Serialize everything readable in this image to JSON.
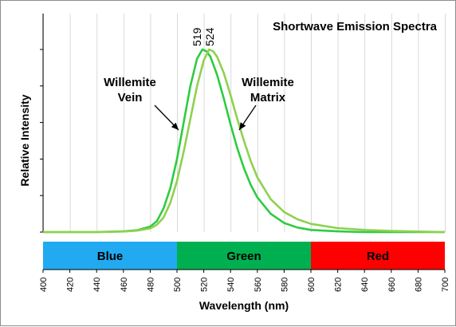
{
  "chart_data": {
    "type": "line",
    "title": "Shortwave Emission Spectra",
    "xlabel": "Wavelength (nm)",
    "ylabel": "Relative Intensity",
    "xlim": [
      400,
      700
    ],
    "ylim": [
      0,
      1.0
    ],
    "x_ticks": [
      "400",
      "420",
      "440",
      "460",
      "480",
      "500",
      "520",
      "540",
      "560",
      "580",
      "600",
      "620",
      "640",
      "660",
      "680",
      "700"
    ],
    "grid": "vertical",
    "peaks": [
      "519",
      "524"
    ],
    "series": [
      {
        "name": "Willemite Vein",
        "color": "#2ecc40",
        "x": [
          400,
          440,
          460,
          470,
          480,
          485,
          490,
          495,
          500,
          505,
          510,
          515,
          519,
          522,
          525,
          530,
          535,
          540,
          545,
          550,
          555,
          560,
          570,
          580,
          590,
          600,
          620,
          640,
          660,
          680,
          700
        ],
        "y": [
          0.0,
          0.0,
          0.004,
          0.01,
          0.03,
          0.06,
          0.13,
          0.24,
          0.4,
          0.6,
          0.8,
          0.95,
          1.0,
          0.99,
          0.96,
          0.86,
          0.73,
          0.59,
          0.46,
          0.35,
          0.26,
          0.19,
          0.1,
          0.05,
          0.025,
          0.012,
          0.004,
          0.0,
          0.0,
          0.0,
          0.0
        ]
      },
      {
        "name": "Willemite Matrix",
        "color": "#8fd14f",
        "x": [
          400,
          440,
          460,
          470,
          480,
          485,
          490,
          495,
          500,
          505,
          510,
          515,
          520,
          524,
          527,
          530,
          535,
          540,
          545,
          550,
          555,
          560,
          570,
          580,
          590,
          600,
          620,
          640,
          660,
          680,
          700
        ],
        "y": [
          0.0,
          0.0,
          0.003,
          0.008,
          0.02,
          0.04,
          0.08,
          0.16,
          0.28,
          0.44,
          0.62,
          0.8,
          0.94,
          1.0,
          0.99,
          0.96,
          0.87,
          0.75,
          0.62,
          0.5,
          0.39,
          0.3,
          0.18,
          0.11,
          0.07,
          0.045,
          0.022,
          0.012,
          0.006,
          0.003,
          0.0
        ]
      }
    ],
    "annotations": [
      {
        "lines": [
          "Willemite",
          "Vein"
        ],
        "target": "Willemite Vein"
      },
      {
        "lines": [
          "Willemite",
          "Matrix"
        ],
        "target": "Willemite Matrix"
      }
    ],
    "bands": [
      {
        "label": "Blue",
        "from": 400,
        "to": 500,
        "color": "#21aaf0"
      },
      {
        "label": "Green",
        "from": 500,
        "to": 600,
        "color": "#00b050"
      },
      {
        "label": "Red",
        "from": 600,
        "to": 700,
        "color": "#ff0000"
      }
    ]
  }
}
